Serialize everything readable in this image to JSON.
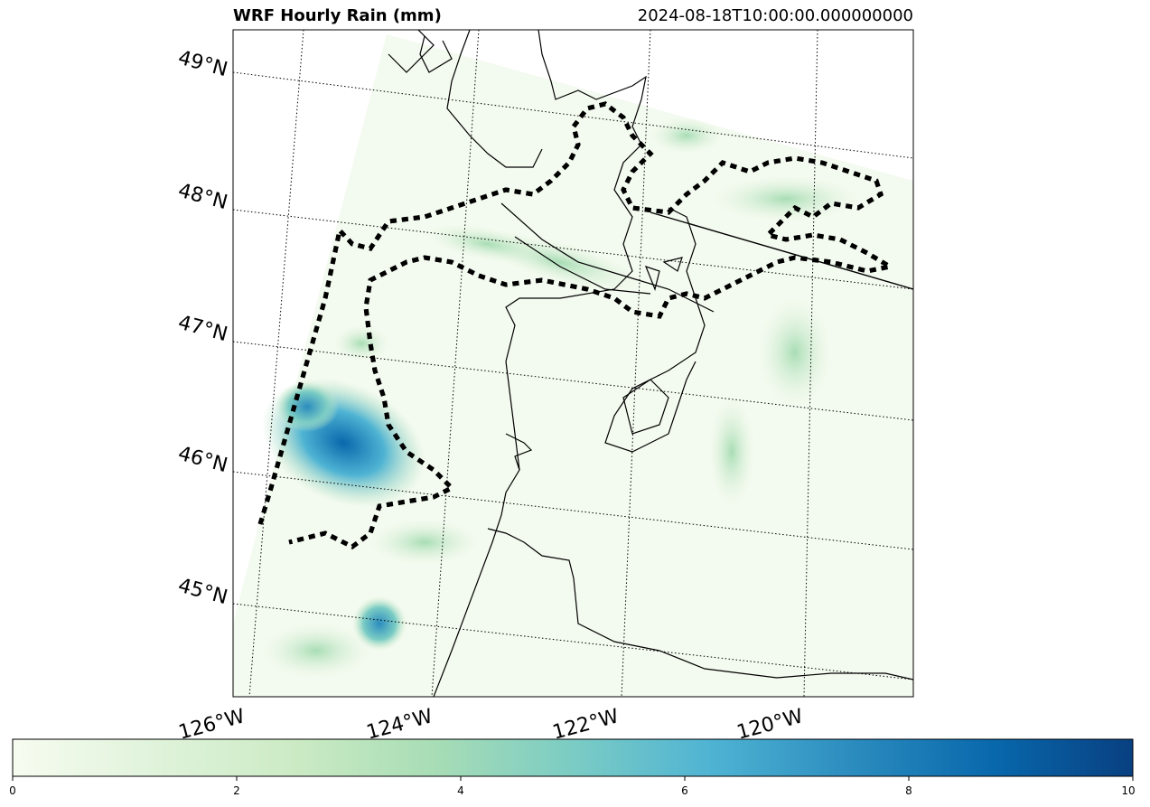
{
  "title": "WRF Hourly Rain (mm)",
  "timestamp": "2024-08-18T10:00:00.000000000",
  "lat_labels": [
    "49°N",
    "48°N",
    "47°N",
    "46°N",
    "45°N"
  ],
  "lon_labels": [
    "126°W",
    "124°W",
    "122°W",
    "120°W"
  ],
  "colorbar": {
    "colormap": "GnBu",
    "min": 0,
    "max": 10,
    "ticks": [
      "0",
      "2",
      "4",
      "6",
      "8",
      "10"
    ],
    "colors": [
      "#f7fcf0",
      "#e0f3db",
      "#ccebc5",
      "#a8ddb5",
      "#7bccc4",
      "#4eb3d3",
      "#2b8cbe",
      "#0868ac",
      "#084081"
    ]
  }
}
